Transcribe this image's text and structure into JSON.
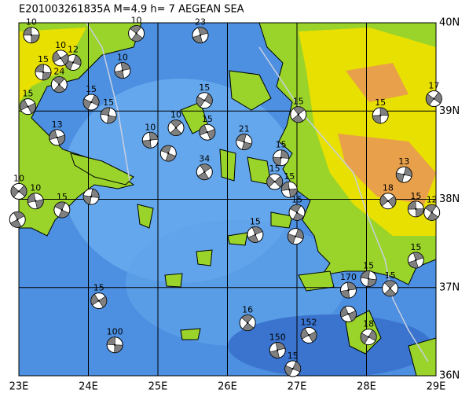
{
  "map": {
    "title": "E201003261835A M=4.9 h=  7 AEGEAN SEA",
    "xlim": [
      23,
      29
    ],
    "ylim": [
      36,
      40
    ],
    "xticks": [
      {
        "value": 23,
        "label": "23E"
      },
      {
        "value": 24,
        "label": "24E"
      },
      {
        "value": 25,
        "label": "25E"
      },
      {
        "value": 26,
        "label": "26E"
      },
      {
        "value": 27,
        "label": "27E"
      },
      {
        "value": 28,
        "label": "28E"
      },
      {
        "value": 29,
        "label": "29E"
      }
    ],
    "yticks": [
      {
        "value": 36,
        "label": "36N"
      },
      {
        "value": 37,
        "label": "37N"
      },
      {
        "value": 38,
        "label": "38N"
      },
      {
        "value": 39,
        "label": "39N"
      },
      {
        "value": 40,
        "label": "40N"
      }
    ],
    "events": [
      {
        "label": "10",
        "lon": 23.18,
        "lat": 39.86
      },
      {
        "label": "10",
        "lon": 24.69,
        "lat": 39.88
      },
      {
        "label": "23",
        "lon": 25.61,
        "lat": 39.86
      },
      {
        "label": "12",
        "lon": 23.78,
        "lat": 39.55
      },
      {
        "label": "10",
        "lon": 23.6,
        "lat": 39.6
      },
      {
        "label": "15",
        "lon": 23.35,
        "lat": 39.44
      },
      {
        "label": "24",
        "lon": 23.58,
        "lat": 39.3
      },
      {
        "label": "10",
        "lon": 24.49,
        "lat": 39.46
      },
      {
        "label": "15",
        "lon": 24.04,
        "lat": 39.1
      },
      {
        "label": "15",
        "lon": 23.13,
        "lat": 39.05
      },
      {
        "label": "15",
        "lon": 24.29,
        "lat": 38.95
      },
      {
        "label": "10",
        "lon": 25.26,
        "lat": 38.81
      },
      {
        "label": "10",
        "lon": 24.89,
        "lat": 38.67
      },
      {
        "label": "15",
        "lon": 25.67,
        "lat": 39.12
      },
      {
        "label": "15",
        "lon": 25.71,
        "lat": 38.76
      },
      {
        "label": "21",
        "lon": 26.24,
        "lat": 38.65
      },
      {
        "label": "15",
        "lon": 27.02,
        "lat": 38.96
      },
      {
        "label": "15",
        "lon": 28.2,
        "lat": 38.95
      },
      {
        "label": "17",
        "lon": 28.97,
        "lat": 39.14
      },
      {
        "label": "13",
        "lon": 23.55,
        "lat": 38.7
      },
      {
        "lon": 25.15,
        "lat": 38.52
      },
      {
        "label": "34",
        "lon": 25.67,
        "lat": 38.31
      },
      {
        "label": "15",
        "lon": 26.77,
        "lat": 38.47
      },
      {
        "label": "10",
        "lon": 23.0,
        "lat": 38.09
      },
      {
        "label": "10",
        "lon": 23.24,
        "lat": 37.98
      },
      {
        "label": "15",
        "lon": 23.62,
        "lat": 37.88
      },
      {
        "lon": 22.98,
        "lat": 37.77
      },
      {
        "lon": 24.04,
        "lat": 38.03
      },
      {
        "label": "15",
        "lon": 26.68,
        "lat": 38.2
      },
      {
        "label": "15",
        "lon": 26.89,
        "lat": 38.11
      },
      {
        "label": "15",
        "lon": 27.0,
        "lat": 37.85
      },
      {
        "label": "15",
        "lon": 26.4,
        "lat": 37.6
      },
      {
        "label": "13",
        "lon": 28.54,
        "lat": 38.28
      },
      {
        "label": "18",
        "lon": 28.31,
        "lat": 37.98
      },
      {
        "label": "15",
        "lon": 28.71,
        "lat": 37.89
      },
      {
        "label": "12",
        "lon": 28.94,
        "lat": 37.85
      },
      {
        "label": "15",
        "lon": 28.71,
        "lat": 37.31
      },
      {
        "lon": 26.98,
        "lat": 37.58
      },
      {
        "label": "15",
        "lon": 24.15,
        "lat": 36.85
      },
      {
        "label": "100",
        "lon": 24.38,
        "lat": 36.35
      },
      {
        "label": "16",
        "lon": 26.29,
        "lat": 36.6
      },
      {
        "label": "150",
        "lon": 26.72,
        "lat": 36.29
      },
      {
        "label": "15",
        "lon": 26.94,
        "lat": 36.08
      },
      {
        "label": "152",
        "lon": 27.17,
        "lat": 36.46
      },
      {
        "label": "15",
        "lon": 28.03,
        "lat": 37.1
      },
      {
        "label": "15",
        "lon": 28.34,
        "lat": 36.99
      },
      {
        "label": "170",
        "lon": 27.74,
        "lat": 36.97
      },
      {
        "label": "18",
        "lon": 28.03,
        "lat": 36.44
      },
      {
        "lon": 27.74,
        "lat": 36.7
      }
    ]
  }
}
